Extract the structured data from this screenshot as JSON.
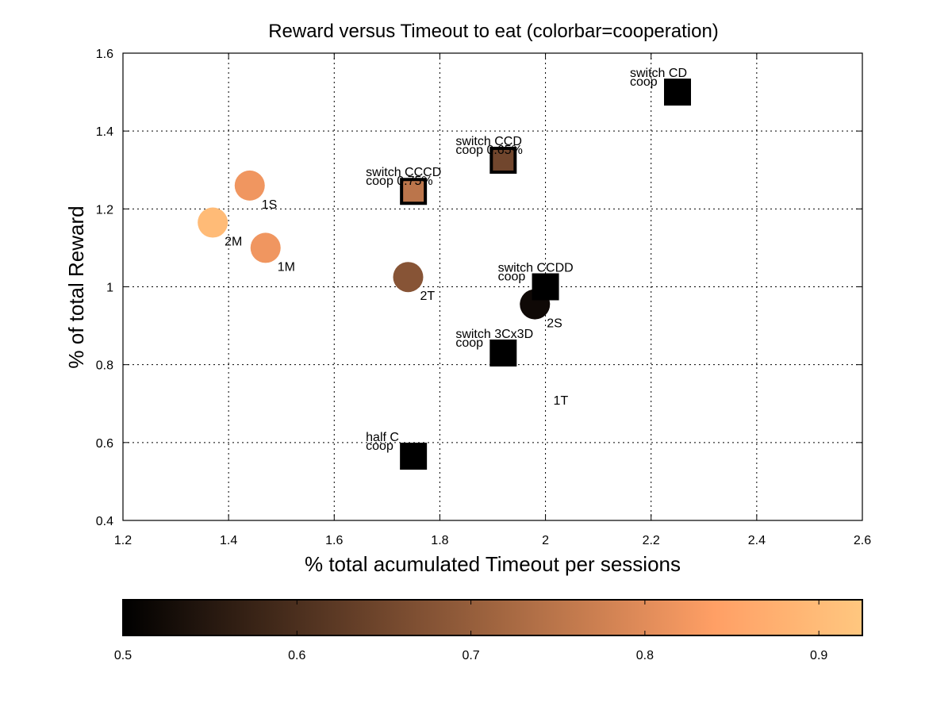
{
  "chart_data": {
    "type": "scatter",
    "title": "Reward versus Timeout to eat (colorbar=cooperation)",
    "xlabel": "% total acumulated Timeout per sessions",
    "ylabel": "% of total Reward",
    "xlim": [
      1.2,
      2.6
    ],
    "ylim": [
      0.4,
      1.6
    ],
    "xticks": [
      "1.2",
      "1.4",
      "1.6",
      "1.8",
      "2",
      "2.2",
      "2.4",
      "2.6"
    ],
    "yticks": [
      "0.4",
      "0.6",
      "0.8",
      "1",
      "1.2",
      "1.4",
      "1.6"
    ],
    "grid": true,
    "colormap": "copper",
    "colorbar": {
      "orientation": "horizontal",
      "position": "bottom",
      "range": [
        0.5,
        0.925
      ],
      "ticks": [
        "0.5",
        "0.6",
        "0.7",
        "0.8",
        "0.9"
      ]
    },
    "points": [
      {
        "x": 1.44,
        "y": 1.26,
        "coop": 0.82,
        "marker": "circle",
        "label": "1S"
      },
      {
        "x": 1.37,
        "y": 1.165,
        "coop": 0.9,
        "marker": "circle",
        "label": "2M"
      },
      {
        "x": 1.47,
        "y": 1.1,
        "coop": 0.82,
        "marker": "circle",
        "label": "1M"
      },
      {
        "x": 1.74,
        "y": 1.025,
        "coop": 0.68,
        "marker": "circle",
        "label": "2T"
      },
      {
        "x": 1.98,
        "y": 0.955,
        "coop": 0.52,
        "marker": "circle",
        "label": "2S"
      },
      {
        "x": 2.25,
        "y": 1.5,
        "coop": 0.5,
        "marker": "square",
        "label": "switch CD",
        "sublabel": "coop"
      },
      {
        "x": 1.92,
        "y": 1.325,
        "coop": 0.65,
        "marker": "square",
        "label": "switch CCD",
        "sublabel": "coop 0.65%"
      },
      {
        "x": 1.75,
        "y": 1.245,
        "coop": 0.75,
        "marker": "square",
        "label": "switch CCCD",
        "sublabel": "coop 0.75%"
      },
      {
        "x": 2.0,
        "y": 1.0,
        "coop": 0.5,
        "marker": "square",
        "label": "switch CCDD",
        "sublabel": "coop"
      },
      {
        "x": 1.92,
        "y": 0.83,
        "coop": 0.5,
        "marker": "square",
        "label": "switch 3Cx3D",
        "sublabel": "coop"
      },
      {
        "x": 1.75,
        "y": 0.565,
        "coop": 0.5,
        "marker": "square",
        "label": "half C",
        "sublabel": "coop"
      }
    ],
    "annotations": [
      {
        "text": "1T",
        "x": 2.015,
        "y": 0.71
      }
    ]
  }
}
